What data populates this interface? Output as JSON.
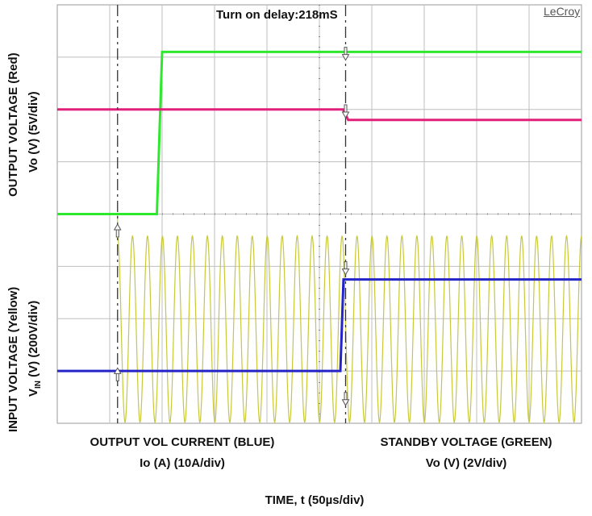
{
  "chart_data": {
    "type": "line",
    "title": "Turn on delay:218mS",
    "brand": "LeCroy",
    "y_labels": {
      "upper_line1": "OUTPUT VOLTAGE (Red)",
      "upper_line2": "Vo (V) (5V/div)",
      "lower_line1": "INPUT VOLTAGE (Yellow)",
      "lower_line2_prefix": "V",
      "lower_line2_sub": "IN",
      "lower_line2_suffix": " (V) (200V/div)"
    },
    "bottom_labels": {
      "left_line1": "OUTPUT VOL CURRENT (BLUE)",
      "left_line2": "Io (A) (10A/div)",
      "right_line1": "STANDBY VOLTAGE (GREEN)",
      "right_line2": "Vo (V) (2V/div)"
    },
    "xlabel": "TIME, t (50µs/div)",
    "divisions": {
      "x": 10,
      "y": 8
    },
    "cursor_positions_div": [
      1.15,
      5.5
    ],
    "series": [
      {
        "color": "#2ee82e",
        "points": [
          [
            0,
            4.0
          ],
          [
            1.9,
            4.0
          ],
          [
            2.0,
            7.1
          ],
          [
            10,
            7.1
          ]
        ]
      },
      {
        "color": "#e0207a",
        "points": [
          [
            0,
            6.0
          ],
          [
            5.45,
            6.0
          ],
          [
            5.55,
            5.8
          ],
          [
            10,
            5.8
          ]
        ]
      },
      {
        "color": "#2424c8",
        "points": [
          [
            0,
            1.0
          ],
          [
            5.4,
            1.0
          ],
          [
            5.46,
            2.75
          ],
          [
            10,
            2.75
          ]
        ]
      },
      {
        "color": "#c8c83a",
        "sine": {
          "start": 1.15,
          "end": 10,
          "cycles": 31,
          "center": 1.8,
          "amplitude": 1.78,
          "pre_value": 4.0
        }
      }
    ],
    "colors": {
      "grid": "#bfbfbf",
      "dot": "#8a8a8a",
      "cursor": "#333333",
      "background": "#ffffff"
    }
  }
}
